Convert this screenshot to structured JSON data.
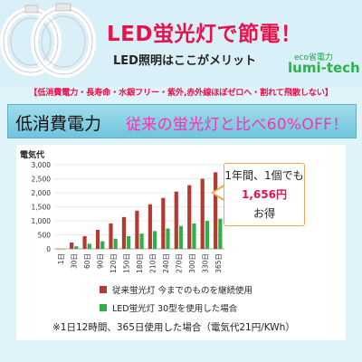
{
  "header": {
    "title": "LED蛍光灯で節電！",
    "subtitle": "LED照明はここがメリット",
    "brand_small": "eco省電力",
    "brand": "lumi-tech"
  },
  "features": {
    "text": "【低消費電力・長寿命・水銀フリー・紫外,赤外線ほぼゼロへ・割れて飛散しない】"
  },
  "banner": {
    "left": "低消費電力",
    "right": "従来の蛍光灯と比べ60%OFF！"
  },
  "callout": {
    "line1": "1年間、1個でも",
    "line2": "1,656円",
    "line3": "お得"
  },
  "legend": {
    "items": [
      {
        "label": "従来蛍光灯 今までのものを継続使用",
        "color": "#b23a2e"
      },
      {
        "label": "LED蛍光灯 30型を使用した場合",
        "color": "#2fae4a"
      }
    ]
  },
  "footnote": "※1日12時間、365日使用した場合（電気代21円/KWh）",
  "colors": {
    "accent_red": "#e8114a",
    "brand_green": "#2bb34b",
    "banner_pink": "#ff2fb0"
  },
  "chart_data": {
    "type": "bar",
    "title": "電気代",
    "xlabel": "",
    "ylabel": "",
    "ylim": [
      0,
      3000
    ],
    "yticks": [
      0,
      500,
      1000,
      1500,
      2000,
      2500,
      3000
    ],
    "ytick_labels": [
      "0",
      "500",
      "1,000",
      "1,500",
      "2,000",
      "2,500",
      "3,000"
    ],
    "grid": true,
    "categories": [
      "1日",
      "30日",
      "60日",
      "90日",
      "120日",
      "150日",
      "180日",
      "210日",
      "240日",
      "270日",
      "300日",
      "330日",
      "365日"
    ],
    "series": [
      {
        "name": "従来蛍光灯 今までのものを継続使用",
        "color": "#b23a2e",
        "values": [
          7,
          227,
          454,
          681,
          908,
          1135,
          1362,
          1589,
          1816,
          2043,
          2270,
          2497,
          2730
        ]
      },
      {
        "name": "LED蛍光灯 30型を使用した場合",
        "color": "#2fae4a",
        "values": [
          3,
          91,
          182,
          272,
          363,
          454,
          545,
          635,
          726,
          817,
          908,
          998,
          1074
        ]
      }
    ]
  }
}
